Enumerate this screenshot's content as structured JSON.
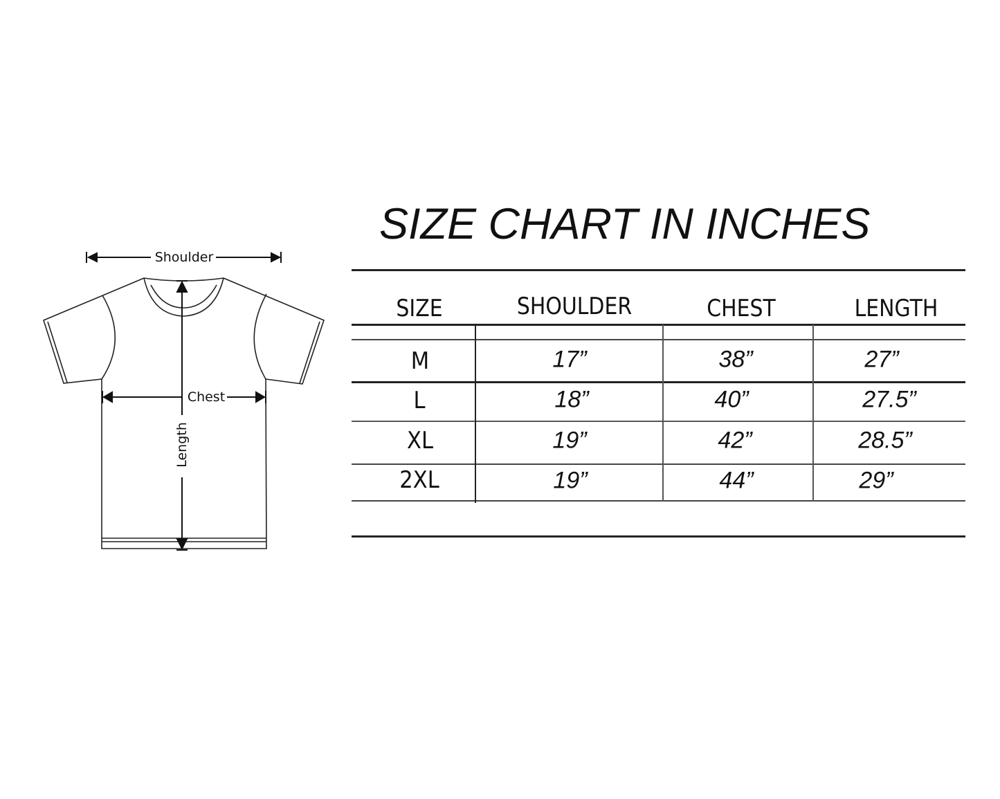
{
  "title": "SIZE CHART IN INCHES",
  "diagram": {
    "shoulder_label": "Shoulder",
    "chest_label": "Chest",
    "length_label": "Length"
  },
  "table": {
    "headers": [
      "SIZE",
      "SHOULDER",
      "CHEST",
      "LENGTH"
    ],
    "rows": [
      [
        "M",
        "17”",
        "38”",
        "27”"
      ],
      [
        "L",
        "18”",
        "40”",
        "27.5”"
      ],
      [
        "XL",
        "19”",
        "42”",
        "28.5”"
      ],
      [
        "2XL",
        "19”",
        "44”",
        "29”"
      ]
    ]
  }
}
